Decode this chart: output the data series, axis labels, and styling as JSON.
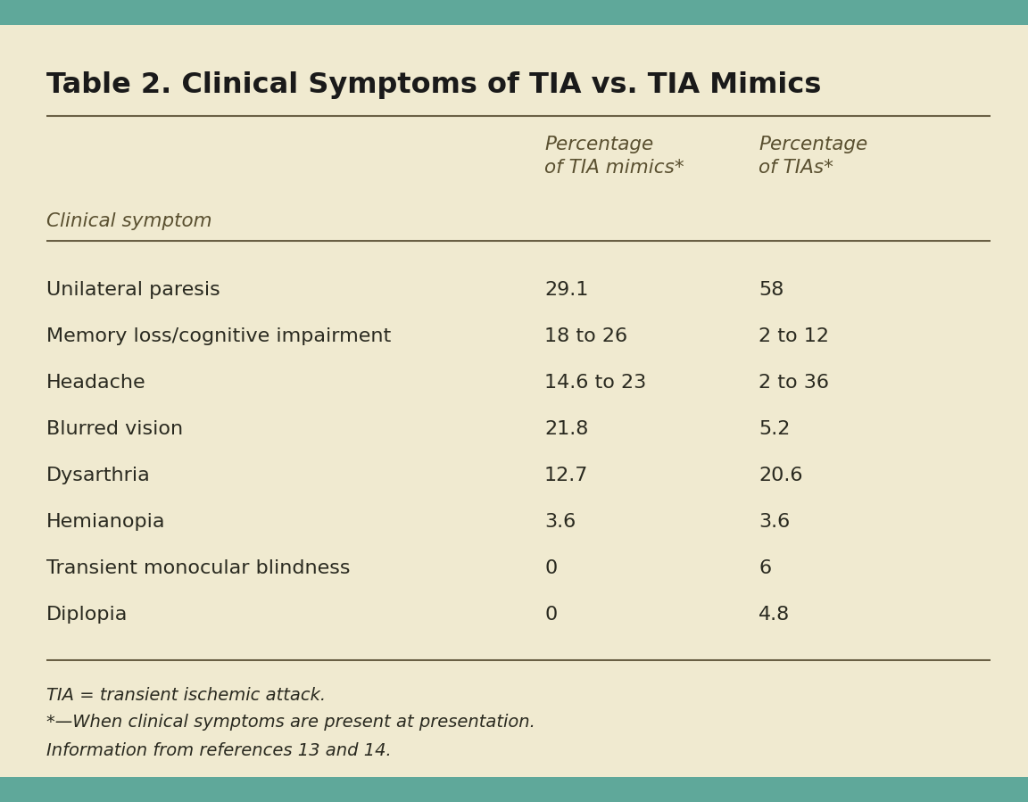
{
  "title": "Table 2. Clinical Symptoms of TIA vs. TIA Mimics",
  "col_header_1": "Clinical symptom",
  "col_header_2": "Percentage\nof TIA mimics*",
  "col_header_3": "Percentage\nof TIAs*",
  "rows": [
    [
      "Unilateral paresis",
      "29.1",
      "58"
    ],
    [
      "Memory loss/cognitive impairment",
      "18 to 26",
      "2 to 12"
    ],
    [
      "Headache",
      "14.6 to 23",
      "2 to 36"
    ],
    [
      "Blurred vision",
      "21.8",
      "5.2"
    ],
    [
      "Dysarthria",
      "12.7",
      "20.6"
    ],
    [
      "Hemianopia",
      "3.6",
      "3.6"
    ],
    [
      "Transient monocular blindness",
      "0",
      "6"
    ],
    [
      "Diplopia",
      "0",
      "4.8"
    ]
  ],
  "footnotes": [
    "TIA = transient ischemic attack.",
    "*—When clinical symptoms are present at presentation.",
    "Information from references 13 and 14."
  ],
  "bg_color": "#f0ead0",
  "border_color": "#5fa89a",
  "title_color": "#1a1a1a",
  "header_color": "#5a5030",
  "text_color": "#2a2a20",
  "line_color": "#6a6045",
  "title_fontsize": 23,
  "header_fontsize": 15.5,
  "body_fontsize": 16,
  "footnote_fontsize": 14
}
